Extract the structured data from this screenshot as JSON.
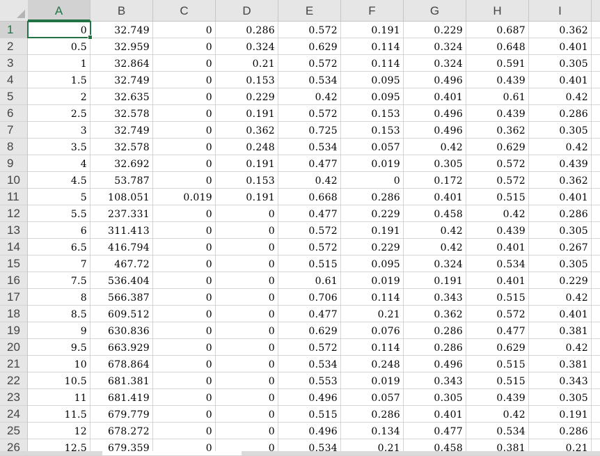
{
  "columns": [
    "A",
    "B",
    "C",
    "D",
    "E",
    "F",
    "G",
    "H",
    "I"
  ],
  "selected_cell": "A1",
  "accent_color": "#217346",
  "rows": [
    {
      "n": "1",
      "c": [
        "0",
        "32.749",
        "0",
        "0.286",
        "0.572",
        "0.191",
        "0.229",
        "0.687",
        "0.362"
      ]
    },
    {
      "n": "2",
      "c": [
        "0.5",
        "32.959",
        "0",
        "0.324",
        "0.629",
        "0.114",
        "0.324",
        "0.648",
        "0.401"
      ]
    },
    {
      "n": "3",
      "c": [
        "1",
        "32.864",
        "0",
        "0.21",
        "0.572",
        "0.114",
        "0.324",
        "0.591",
        "0.305"
      ]
    },
    {
      "n": "4",
      "c": [
        "1.5",
        "32.749",
        "0",
        "0.153",
        "0.534",
        "0.095",
        "0.496",
        "0.439",
        "0.401"
      ]
    },
    {
      "n": "5",
      "c": [
        "2",
        "32.635",
        "0",
        "0.229",
        "0.42",
        "0.095",
        "0.401",
        "0.61",
        "0.42"
      ]
    },
    {
      "n": "6",
      "c": [
        "2.5",
        "32.578",
        "0",
        "0.191",
        "0.572",
        "0.153",
        "0.496",
        "0.439",
        "0.286"
      ]
    },
    {
      "n": "7",
      "c": [
        "3",
        "32.749",
        "0",
        "0.362",
        "0.725",
        "0.153",
        "0.496",
        "0.362",
        "0.305"
      ]
    },
    {
      "n": "8",
      "c": [
        "3.5",
        "32.578",
        "0",
        "0.248",
        "0.534",
        "0.057",
        "0.42",
        "0.629",
        "0.42"
      ]
    },
    {
      "n": "9",
      "c": [
        "4",
        "32.692",
        "0",
        "0.191",
        "0.477",
        "0.019",
        "0.305",
        "0.572",
        "0.439"
      ]
    },
    {
      "n": "10",
      "c": [
        "4.5",
        "53.787",
        "0",
        "0.153",
        "0.42",
        "0",
        "0.172",
        "0.572",
        "0.362"
      ]
    },
    {
      "n": "11",
      "c": [
        "5",
        "108.051",
        "0.019",
        "0.191",
        "0.668",
        "0.286",
        "0.401",
        "0.515",
        "0.401"
      ]
    },
    {
      "n": "12",
      "c": [
        "5.5",
        "237.331",
        "0",
        "0",
        "0.477",
        "0.229",
        "0.458",
        "0.42",
        "0.286"
      ]
    },
    {
      "n": "13",
      "c": [
        "6",
        "311.413",
        "0",
        "0",
        "0.572",
        "0.191",
        "0.42",
        "0.439",
        "0.305"
      ]
    },
    {
      "n": "14",
      "c": [
        "6.5",
        "416.794",
        "0",
        "0",
        "0.572",
        "0.229",
        "0.42",
        "0.401",
        "0.267"
      ]
    },
    {
      "n": "15",
      "c": [
        "7",
        "467.72",
        "0",
        "0",
        "0.515",
        "0.095",
        "0.324",
        "0.534",
        "0.305"
      ]
    },
    {
      "n": "16",
      "c": [
        "7.5",
        "536.404",
        "0",
        "0",
        "0.61",
        "0.019",
        "0.191",
        "0.401",
        "0.229"
      ]
    },
    {
      "n": "17",
      "c": [
        "8",
        "566.387",
        "0",
        "0",
        "0.706",
        "0.114",
        "0.343",
        "0.515",
        "0.42"
      ]
    },
    {
      "n": "18",
      "c": [
        "8.5",
        "609.512",
        "0",
        "0",
        "0.477",
        "0.21",
        "0.362",
        "0.572",
        "0.401"
      ]
    },
    {
      "n": "19",
      "c": [
        "9",
        "630.836",
        "0",
        "0",
        "0.629",
        "0.076",
        "0.286",
        "0.477",
        "0.381"
      ]
    },
    {
      "n": "20",
      "c": [
        "9.5",
        "663.929",
        "0",
        "0",
        "0.572",
        "0.114",
        "0.286",
        "0.629",
        "0.42"
      ]
    },
    {
      "n": "21",
      "c": [
        "10",
        "678.864",
        "0",
        "0",
        "0.534",
        "0.248",
        "0.496",
        "0.515",
        "0.381"
      ]
    },
    {
      "n": "22",
      "c": [
        "10.5",
        "681.381",
        "0",
        "0",
        "0.553",
        "0.019",
        "0.343",
        "0.515",
        "0.343"
      ]
    },
    {
      "n": "23",
      "c": [
        "11",
        "681.419",
        "0",
        "0",
        "0.496",
        "0.057",
        "0.305",
        "0.439",
        "0.305"
      ]
    },
    {
      "n": "24",
      "c": [
        "11.5",
        "679.779",
        "0",
        "0",
        "0.515",
        "0.286",
        "0.401",
        "0.42",
        "0.191"
      ]
    },
    {
      "n": "25",
      "c": [
        "12",
        "678.272",
        "0",
        "0",
        "0.496",
        "0.134",
        "0.477",
        "0.534",
        "0.286"
      ]
    },
    {
      "n": "26",
      "c": [
        "12.5",
        "679.359",
        "0",
        "0",
        "0.534",
        "0.21",
        "0.458",
        "0.381",
        "0.21"
      ]
    }
  ]
}
